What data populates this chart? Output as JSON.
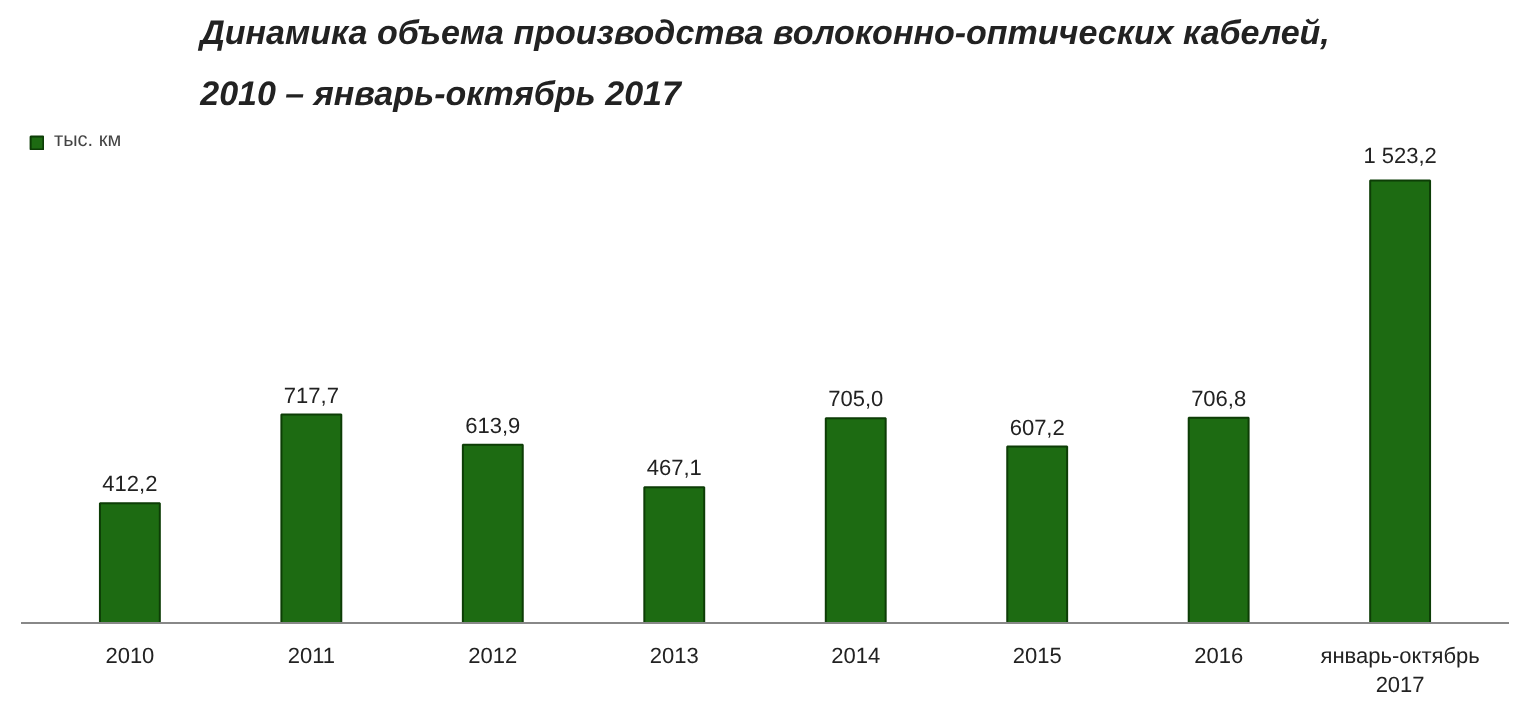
{
  "chart_data": {
    "type": "bar",
    "title": "Динамика объема производства волоконно-оптических кабелей,\n2010 – январь-октябрь 2017",
    "categories": [
      "2010",
      "2011",
      "2012",
      "2013",
      "2014",
      "2015",
      "2016",
      "январь-октябрь\n2017"
    ],
    "series": [
      {
        "name": "тыс. км",
        "color": "#1d6b12",
        "values": [
          412.2,
          717.7,
          613.9,
          467.1,
          705.0,
          607.2,
          706.8,
          1523.2
        ],
        "value_labels": [
          "412,2",
          "717,7",
          "613,9",
          "467,1",
          "705,0",
          "607,2",
          "706,8",
          "1 523,2"
        ]
      }
    ],
    "legend": "top left",
    "grid": false
  }
}
